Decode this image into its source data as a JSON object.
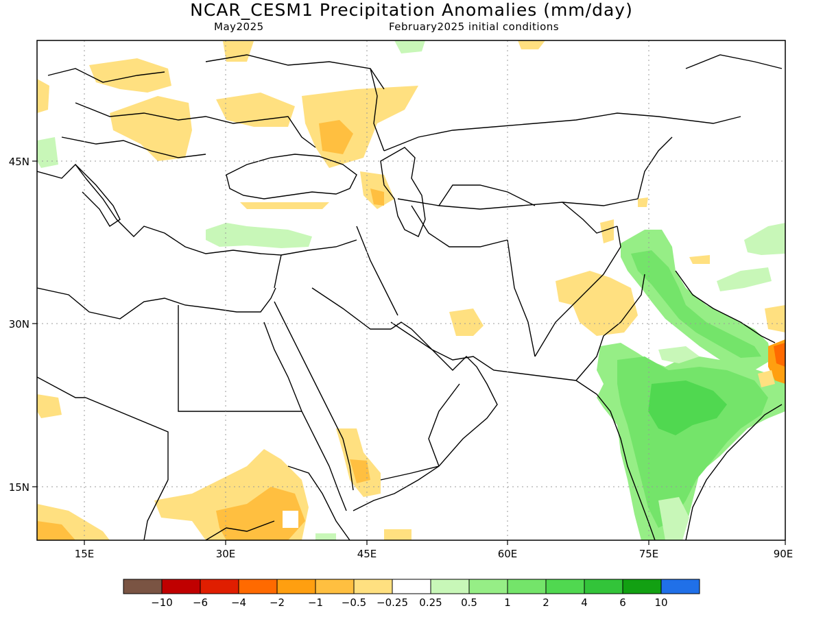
{
  "title": "NCAR_CESM1 Precipitation Anomalies (mm/day)",
  "valid_month": "May2025",
  "init_conditions": "February2025 initial conditions",
  "axes": {
    "lon_ticks": [
      "15E",
      "30E",
      "45E",
      "60E",
      "75E",
      "90E"
    ],
    "lat_ticks": [
      "45N",
      "30N",
      "15N"
    ]
  },
  "colorbar": {
    "colors": [
      "#7a5443",
      "#c00000",
      "#e01e00",
      "#ff6a00",
      "#ff9f10",
      "#ffbf40",
      "#ffe080",
      "#ffffff",
      "#c8f7b8",
      "#96ee86",
      "#74e46a",
      "#50d850",
      "#33c43a",
      "#12a012",
      "#2070e8"
    ],
    "labels": [
      "−10",
      "−6",
      "−4",
      "−2",
      "−1",
      "−0.5",
      "−0.25",
      "0.25",
      "0.5",
      "1",
      "2",
      "4",
      "6",
      "10"
    ]
  },
  "colors": {
    "neg_light": "#ffe080",
    "neg_mid": "#ffbf40",
    "neg_strong": "#ff9f10",
    "pos_light": "#c8f7b8",
    "pos_mid": "#96ee86",
    "pos_strong": "#74e46a",
    "pos_stronger": "#50d850"
  }
}
